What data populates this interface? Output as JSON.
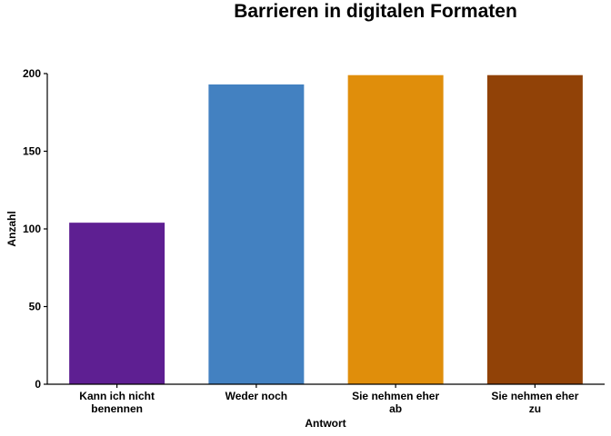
{
  "chart_data": {
    "type": "bar",
    "title": "Barrieren in digitalen Formaten",
    "xlabel": "Antwort",
    "ylabel": "Anzahl",
    "categories": [
      [
        "Kann ich nicht",
        "benennen"
      ],
      [
        "Weder noch"
      ],
      [
        "Sie nehmen eher",
        "ab"
      ],
      [
        "Sie nehmen eher",
        "zu"
      ]
    ],
    "values": [
      104,
      193,
      199,
      199
    ],
    "colors": [
      "#5E1F92",
      "#4381C1",
      "#E08E0B",
      "#914207"
    ],
    "ylim": [
      0,
      200
    ],
    "yticks": [
      0,
      50,
      100,
      150,
      200
    ],
    "grid": false,
    "legend": "none"
  }
}
